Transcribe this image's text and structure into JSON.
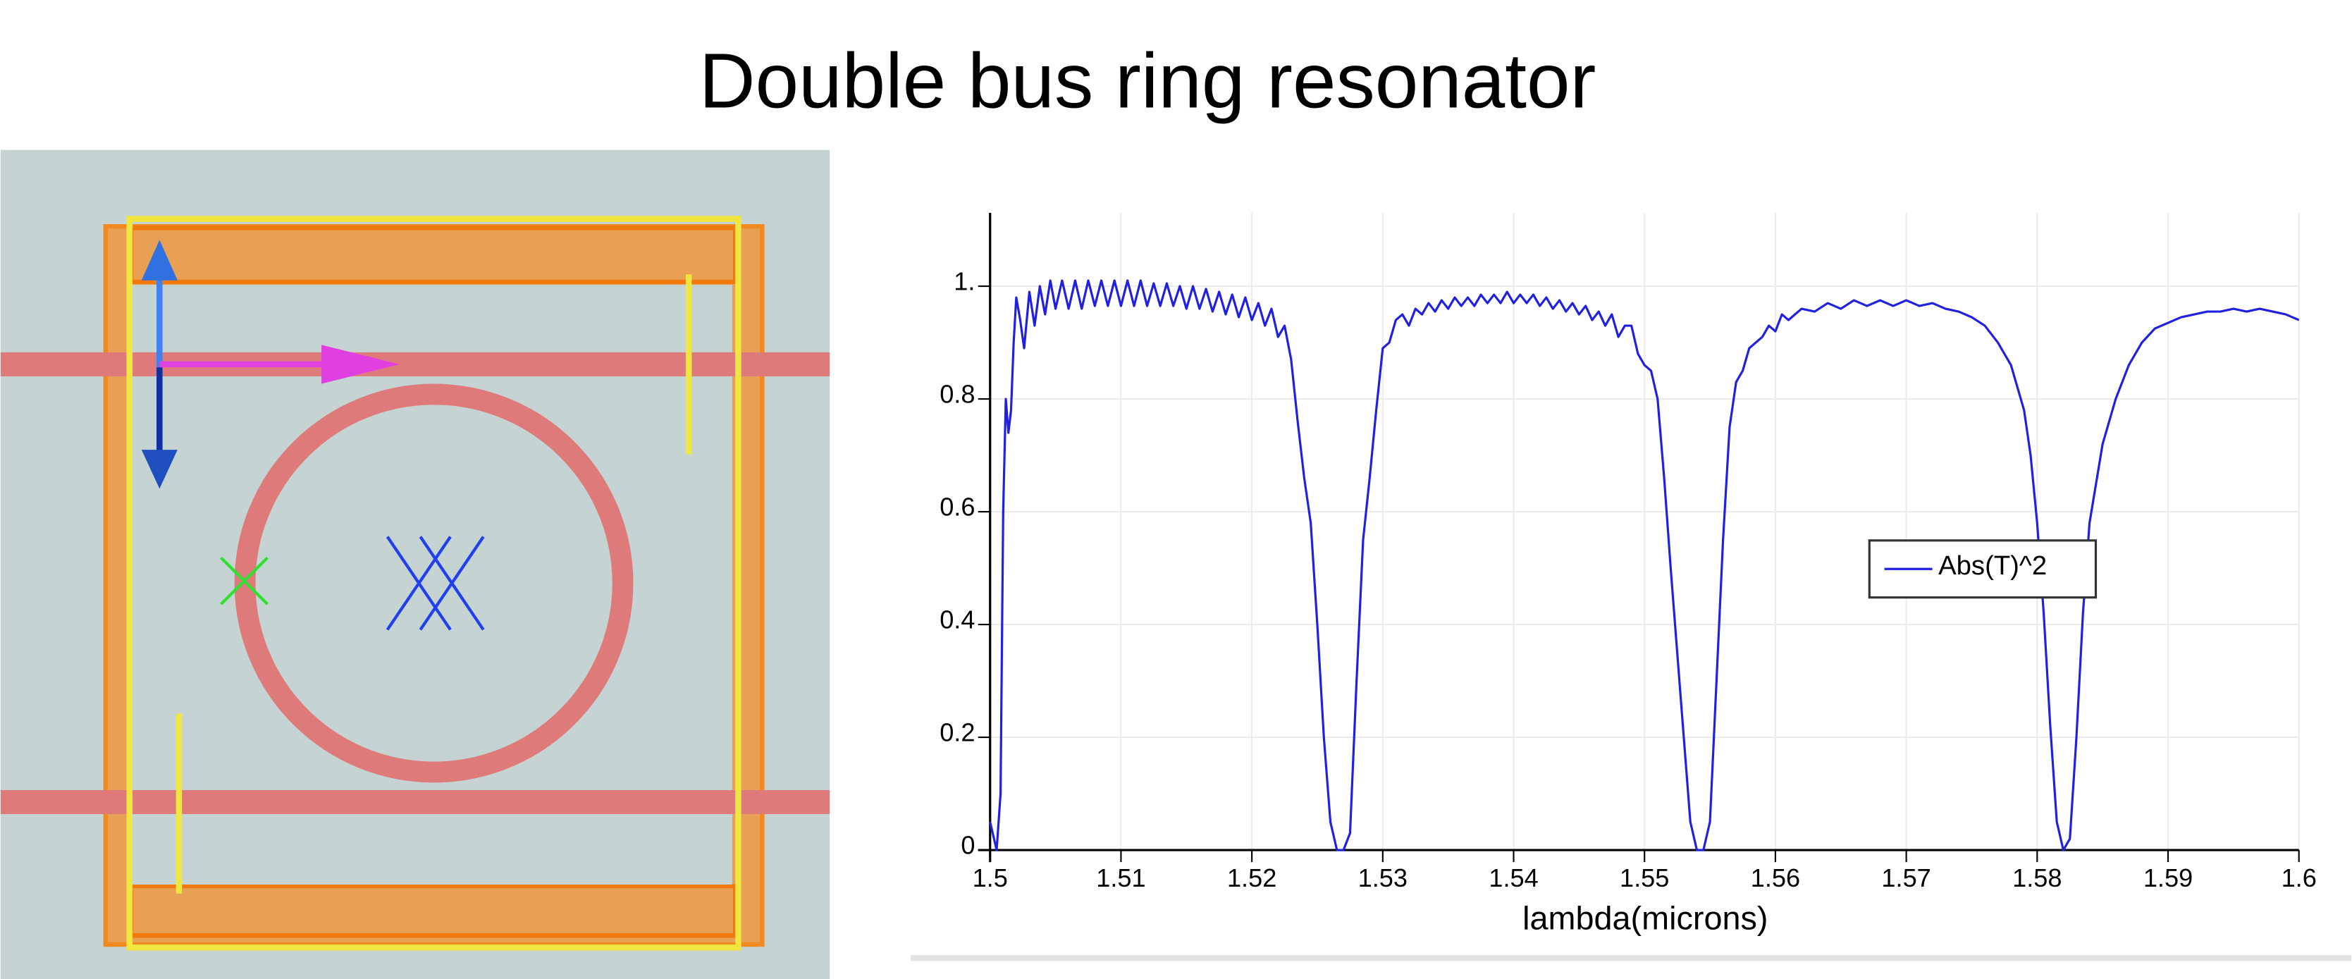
{
  "chart_data": {
    "type": "line",
    "title": "Double bus ring resonator",
    "x_label": "lambda(microns)",
    "xlim": [
      1.5,
      1.6
    ],
    "xticks": [
      1.5,
      1.51,
      1.52,
      1.53,
      1.54,
      1.55,
      1.56,
      1.57,
      1.58,
      1.59,
      1.6
    ],
    "ylim": [
      0,
      1.13
    ],
    "yticks": [
      0,
      0.2,
      0.4,
      0.6,
      0.8,
      {
        "value": 1,
        "label": "1."
      }
    ],
    "grid": true,
    "legend": "center",
    "x": [
      1.5,
      1.5005,
      1.5008,
      1.501,
      1.5012,
      1.5014,
      1.5016,
      1.5018,
      1.502,
      1.5023,
      1.5026,
      1.503,
      1.5034,
      1.5038,
      1.5042,
      1.5046,
      1.505,
      1.5055,
      1.506,
      1.5065,
      1.507,
      1.5075,
      1.508,
      1.5085,
      1.509,
      1.5095,
      1.51,
      1.5105,
      1.511,
      1.5115,
      1.512,
      1.5125,
      1.513,
      1.5135,
      1.514,
      1.5145,
      1.515,
      1.5155,
      1.516,
      1.5165,
      1.517,
      1.5175,
      1.518,
      1.5185,
      1.519,
      1.5195,
      1.52,
      1.5205,
      1.521,
      1.5215,
      1.522,
      1.5225,
      1.523,
      1.5235,
      1.524,
      1.5245,
      1.525,
      1.5255,
      1.526,
      1.5265,
      1.527,
      1.5275,
      1.528,
      1.5285,
      1.529,
      1.5295,
      1.53,
      1.5305,
      1.531,
      1.5315,
      1.532,
      1.5325,
      1.533,
      1.5335,
      1.534,
      1.5345,
      1.535,
      1.5355,
      1.536,
      1.5365,
      1.537,
      1.5375,
      1.538,
      1.5385,
      1.539,
      1.5395,
      1.54,
      1.5405,
      1.541,
      1.5415,
      1.542,
      1.5425,
      1.543,
      1.5435,
      1.544,
      1.5445,
      1.545,
      1.5455,
      1.546,
      1.5465,
      1.547,
      1.5475,
      1.548,
      1.5485,
      1.549,
      1.5495,
      1.55,
      1.5505,
      1.551,
      1.5515,
      1.552,
      1.5525,
      1.553,
      1.5535,
      1.554,
      1.5545,
      1.555,
      1.5555,
      1.556,
      1.5565,
      1.557,
      1.5575,
      1.558,
      1.5585,
      1.559,
      1.5595,
      1.56,
      1.5605,
      1.561,
      1.562,
      1.563,
      1.564,
      1.565,
      1.566,
      1.567,
      1.568,
      1.569,
      1.57,
      1.571,
      1.572,
      1.573,
      1.574,
      1.575,
      1.576,
      1.577,
      1.578,
      1.579,
      1.5795,
      1.58,
      1.5805,
      1.581,
      1.5815,
      1.582,
      1.5825,
      1.583,
      1.5835,
      1.584,
      1.585,
      1.586,
      1.587,
      1.588,
      1.589,
      1.59,
      1.591,
      1.592,
      1.593,
      1.594,
      1.595,
      1.596,
      1.597,
      1.598,
      1.599,
      1.6
    ],
    "series": [
      {
        "name": "Abs(T)^2",
        "color": "#2020e0",
        "values": [
          0.05,
          0,
          0.1,
          0.6,
          0.8,
          0.74,
          0.78,
          0.9,
          0.98,
          0.94,
          0.89,
          0.99,
          0.93,
          1.0,
          0.95,
          1.01,
          0.96,
          1.01,
          0.96,
          1.01,
          0.96,
          1.01,
          0.965,
          1.01,
          0.965,
          1.01,
          0.965,
          1.01,
          0.965,
          1.01,
          0.965,
          1.005,
          0.965,
          1.005,
          0.965,
          1.0,
          0.96,
          1.0,
          0.96,
          0.995,
          0.955,
          0.99,
          0.95,
          0.985,
          0.945,
          0.98,
          0.94,
          0.97,
          0.93,
          0.96,
          0.91,
          0.93,
          0.87,
          0.76,
          0.66,
          0.58,
          0.4,
          0.2,
          0.05,
          0,
          0,
          0.03,
          0.3,
          0.55,
          0.66,
          0.78,
          0.89,
          0.9,
          0.94,
          0.95,
          0.93,
          0.96,
          0.95,
          0.97,
          0.955,
          0.975,
          0.96,
          0.98,
          0.965,
          0.98,
          0.965,
          0.985,
          0.97,
          0.985,
          0.97,
          0.99,
          0.97,
          0.985,
          0.97,
          0.985,
          0.965,
          0.98,
          0.96,
          0.975,
          0.955,
          0.97,
          0.95,
          0.965,
          0.94,
          0.955,
          0.93,
          0.95,
          0.91,
          0.93,
          0.93,
          0.88,
          0.86,
          0.85,
          0.8,
          0.66,
          0.5,
          0.35,
          0.2,
          0.05,
          0,
          0,
          0.05,
          0.3,
          0.55,
          0.75,
          0.83,
          0.85,
          0.89,
          0.9,
          0.91,
          0.93,
          0.92,
          0.95,
          0.94,
          0.96,
          0.955,
          0.97,
          0.96,
          0.975,
          0.965,
          0.975,
          0.965,
          0.975,
          0.965,
          0.97,
          0.96,
          0.955,
          0.945,
          0.93,
          0.9,
          0.86,
          0.78,
          0.7,
          0.58,
          0.42,
          0.22,
          0.05,
          0,
          0.02,
          0.2,
          0.42,
          0.58,
          0.72,
          0.8,
          0.86,
          0.9,
          0.925,
          0.935,
          0.945,
          0.95,
          0.955,
          0.955,
          0.96,
          0.955,
          0.96,
          0.955,
          0.95,
          0.94
        ]
      }
    ]
  }
}
